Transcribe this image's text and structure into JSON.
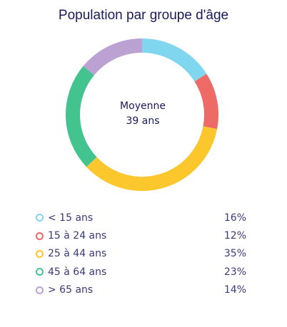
{
  "chart_data": {
    "type": "pie",
    "variant": "donut",
    "title": "Population par groupe d'âge",
    "center_label": "Moyenne",
    "center_value": "39 ans",
    "categories": [
      "< 15 ans",
      "15 à 24 ans",
      "25 à 44 ans",
      "45 à 64 ans",
      "> 65 ans"
    ],
    "values": [
      16,
      12,
      35,
      23,
      14
    ],
    "value_labels": [
      "16%",
      "12%",
      "35%",
      "23%",
      "14%"
    ],
    "colors": [
      "#7fd6ee",
      "#ee6a66",
      "#fcc62d",
      "#43c48f",
      "#bba2d3"
    ],
    "legend_position": "bottom"
  }
}
